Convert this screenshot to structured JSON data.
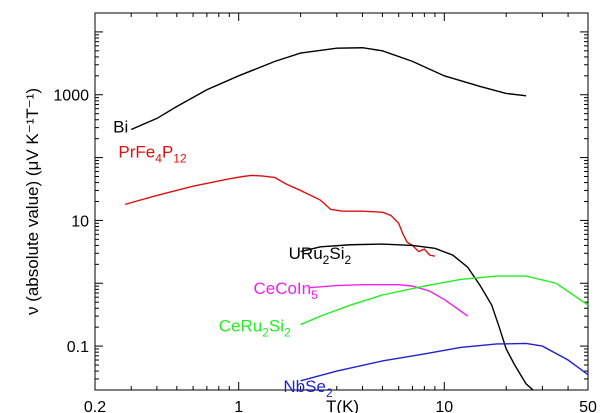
{
  "chart_data": {
    "type": "line",
    "title": "",
    "xlabel": "T(K)",
    "ylabel": "ν (absolute value) (μV K⁻¹T⁻¹)",
    "x_scale": "log",
    "y_scale": "log",
    "xlim": [
      0.2,
      50
    ],
    "ylim": [
      0.02,
      20000
    ],
    "grid": false,
    "legend": "none",
    "x_ticks": [
      {
        "value": 0.2,
        "label": "0.2"
      },
      {
        "value": 1,
        "label": "1"
      },
      {
        "value": 10,
        "label": "10"
      },
      {
        "value": 50,
        "label": "50"
      }
    ],
    "y_ticks": [
      {
        "value": 0.1,
        "label": "0.1"
      },
      {
        "value": 10,
        "label": "10"
      },
      {
        "value": 1000,
        "label": "1000"
      }
    ],
    "series": [
      {
        "name": "Bi",
        "label_parts": [
          {
            "t": "Bi",
            "sub": false
          }
        ],
        "label_anchor": [
          0.245,
          250
        ],
        "color": "#000000",
        "points": [
          [
            0.3,
            280
          ],
          [
            0.4,
            420
          ],
          [
            0.5,
            650
          ],
          [
            0.7,
            1200
          ],
          [
            1.0,
            2000
          ],
          [
            1.5,
            3400
          ],
          [
            2.0,
            4600
          ],
          [
            3.0,
            5500
          ],
          [
            4.0,
            5600
          ],
          [
            5.0,
            5000
          ],
          [
            7.0,
            3400
          ],
          [
            10.0,
            2000
          ],
          [
            15.0,
            1350
          ],
          [
            20.0,
            1050
          ],
          [
            25.0,
            960
          ]
        ]
      },
      {
        "name": "PrFe4P12",
        "label_parts": [
          {
            "t": "PrFe",
            "sub": false
          },
          {
            "t": "4",
            "sub": true
          },
          {
            "t": "P",
            "sub": false
          },
          {
            "t": "12",
            "sub": true
          }
        ],
        "label_anchor": [
          0.26,
          100
        ],
        "color": "#dd1111",
        "points": [
          [
            0.28,
            18
          ],
          [
            0.4,
            25
          ],
          [
            0.6,
            35
          ],
          [
            0.9,
            46
          ],
          [
            1.05,
            50
          ],
          [
            1.15,
            52
          ],
          [
            1.3,
            51
          ],
          [
            1.5,
            48
          ],
          [
            1.7,
            38
          ],
          [
            2.0,
            30
          ],
          [
            2.5,
            21
          ],
          [
            2.8,
            15
          ],
          [
            3.2,
            14
          ],
          [
            4.0,
            14
          ],
          [
            5.0,
            13.5
          ],
          [
            5.5,
            12
          ],
          [
            6.0,
            9
          ],
          [
            6.3,
            6
          ],
          [
            6.6,
            4.5
          ],
          [
            7.0,
            4.0
          ],
          [
            7.5,
            3.2
          ],
          [
            8.0,
            3.5
          ],
          [
            8.5,
            2.8
          ],
          [
            9.0,
            2.7
          ]
        ]
      },
      {
        "name": "URu2Si2",
        "label_parts": [
          {
            "t": "URu",
            "sub": false
          },
          {
            "t": "2",
            "sub": true
          },
          {
            "t": "Si",
            "sub": false
          },
          {
            "t": "2",
            "sub": true
          }
        ],
        "label_anchor": [
          1.75,
          2.45
        ],
        "color": "#000000",
        "points": [
          [
            2.0,
            3.2
          ],
          [
            2.5,
            3.8
          ],
          [
            3.5,
            4.1
          ],
          [
            5.0,
            4.2
          ],
          [
            7.0,
            4.0
          ],
          [
            9.0,
            3.6
          ],
          [
            11.0,
            2.8
          ],
          [
            13.0,
            1.8
          ],
          [
            15.0,
            0.9
          ],
          [
            17.0,
            0.45
          ],
          [
            18.5,
            0.2
          ],
          [
            20.0,
            0.09
          ],
          [
            22.0,
            0.05
          ],
          [
            25.0,
            0.025
          ],
          [
            27.0,
            0.02
          ]
        ]
      },
      {
        "name": "CeCoIn5",
        "label_parts": [
          {
            "t": "CeCoIn",
            "sub": false
          },
          {
            "t": "5",
            "sub": true
          }
        ],
        "label_anchor": [
          1.18,
          0.68
        ],
        "color": "#ee22ee",
        "points": [
          [
            2.2,
            0.85
          ],
          [
            3.0,
            0.92
          ],
          [
            4.0,
            0.95
          ],
          [
            6.0,
            0.95
          ],
          [
            7.0,
            0.9
          ],
          [
            8.5,
            0.75
          ],
          [
            10.0,
            0.55
          ],
          [
            11.5,
            0.4
          ],
          [
            13.0,
            0.3
          ]
        ]
      },
      {
        "name": "CeRu2Si2",
        "label_parts": [
          {
            "t": "CeRu",
            "sub": false
          },
          {
            "t": "2",
            "sub": true
          },
          {
            "t": "Si",
            "sub": false
          },
          {
            "t": "2",
            "sub": true
          }
        ],
        "label_anchor": [
          0.8,
          0.17
        ],
        "color": "#22ee22",
        "points": [
          [
            2.0,
            0.22
          ],
          [
            2.5,
            0.3
          ],
          [
            3.5,
            0.45
          ],
          [
            5.0,
            0.65
          ],
          [
            8.0,
            0.9
          ],
          [
            12.0,
            1.15
          ],
          [
            18.0,
            1.3
          ],
          [
            25.0,
            1.3
          ],
          [
            35.0,
            1.0
          ],
          [
            50.0,
            0.45
          ]
        ]
      },
      {
        "name": "NbSe2",
        "label_parts": [
          {
            "t": "NbSe",
            "sub": false
          },
          {
            "t": "2",
            "sub": true
          }
        ],
        "label_anchor": [
          1.65,
          0.0185
        ],
        "color": "#2222cc",
        "points": [
          [
            2.0,
            0.028
          ],
          [
            3.0,
            0.04
          ],
          [
            5.0,
            0.058
          ],
          [
            8.0,
            0.075
          ],
          [
            12.0,
            0.095
          ],
          [
            18.0,
            0.108
          ],
          [
            25.0,
            0.11
          ],
          [
            30.0,
            0.1
          ],
          [
            40.0,
            0.06
          ],
          [
            50.0,
            0.035
          ]
        ]
      }
    ]
  }
}
